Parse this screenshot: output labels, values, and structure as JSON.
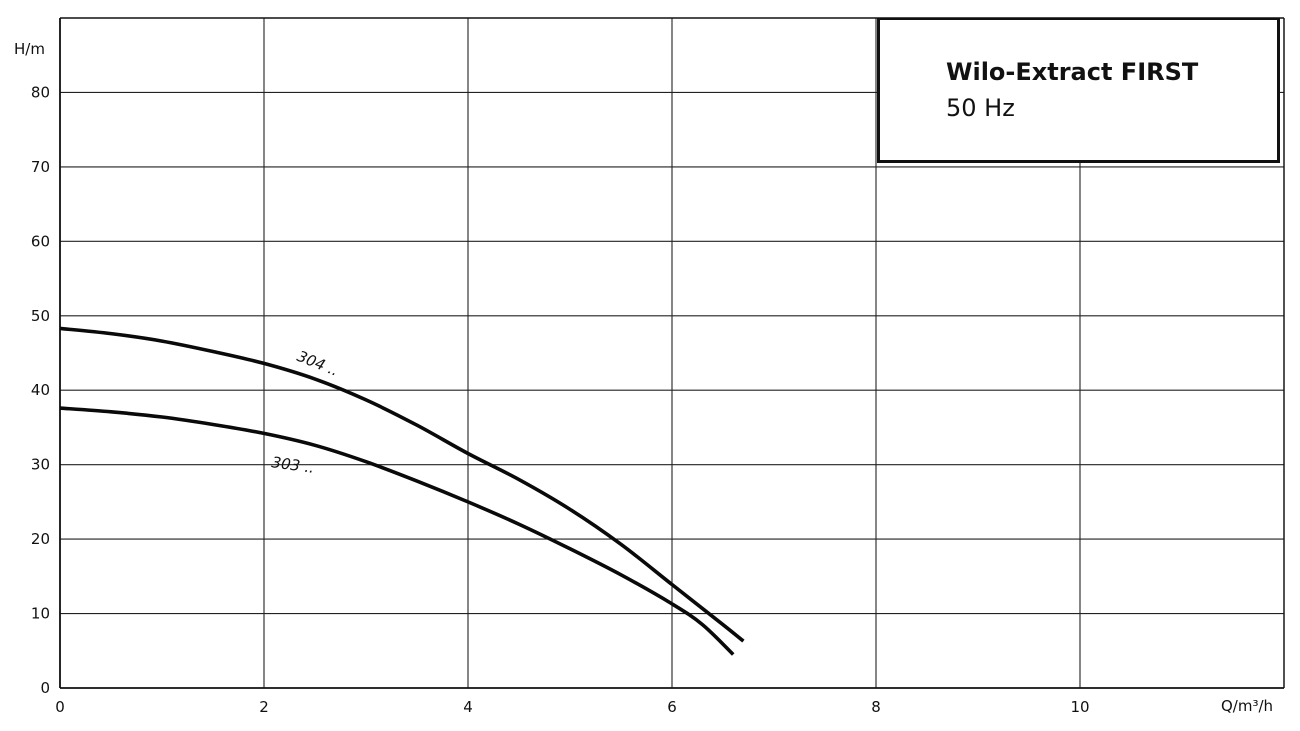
{
  "title": {
    "main": "Wilo-Extract FIRST",
    "sub": "50 Hz"
  },
  "chart_data": {
    "type": "line",
    "title": "Wilo-Extract FIRST",
    "subtitle": "50 Hz",
    "ylabel": "H/m",
    "xlabel": "Q/m³/h",
    "xlim": [
      0,
      12
    ],
    "ylim": [
      0,
      90
    ],
    "x_ticks": [
      0,
      2,
      4,
      6,
      8,
      10
    ],
    "y_ticks": [
      0,
      10,
      20,
      30,
      40,
      50,
      60,
      70,
      80
    ],
    "grid": true,
    "series": [
      {
        "name": "304 ..",
        "x": [
          0,
          0.5,
          1,
          1.5,
          2,
          2.5,
          3,
          3.5,
          4,
          4.5,
          5,
          5.5,
          6,
          6.5,
          6.7
        ],
        "y": [
          48.3,
          47.6,
          46.6,
          45.2,
          43.6,
          41.5,
          38.7,
          35.3,
          31.5,
          28,
          24,
          19.3,
          13.9,
          8.5,
          6.3
        ]
      },
      {
        "name": "303 ..",
        "x": [
          0,
          0.5,
          1,
          1.5,
          2,
          2.5,
          3,
          3.5,
          4,
          4.5,
          5,
          5.5,
          6,
          6.3,
          6.6
        ],
        "y": [
          37.6,
          37.1,
          36.4,
          35.4,
          34.2,
          32.6,
          30.4,
          27.8,
          25,
          22,
          18.7,
          15.2,
          11.3,
          8.5,
          4.5
        ]
      }
    ]
  }
}
